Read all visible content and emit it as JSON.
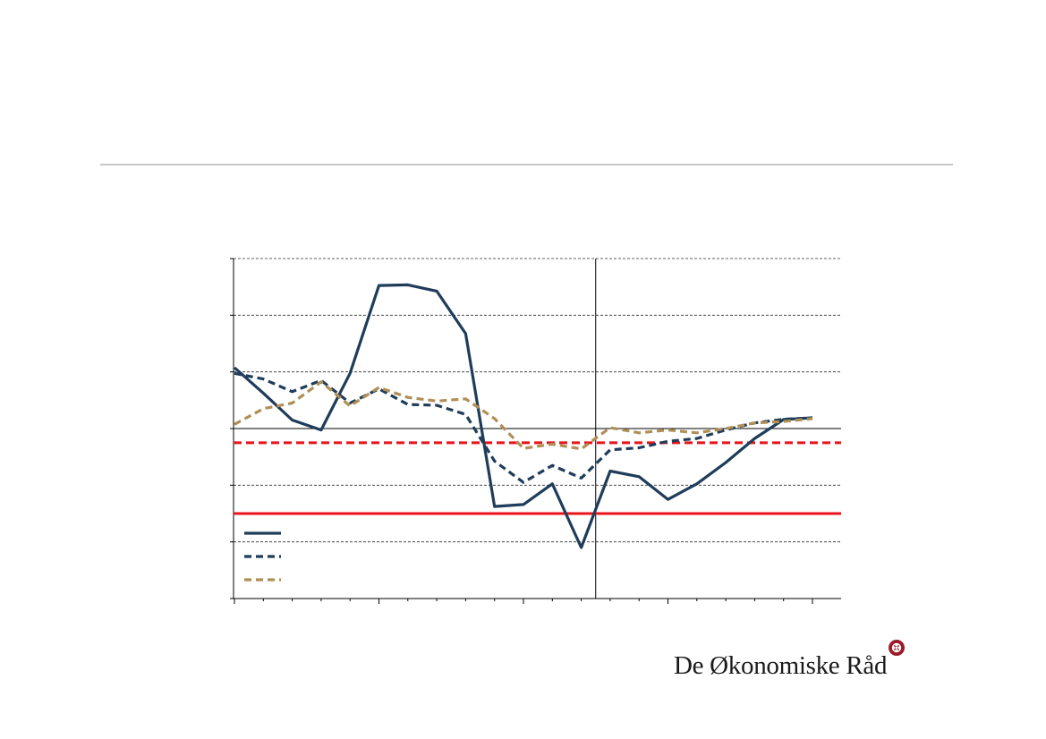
{
  "brand": {
    "name": "De Økonomiske Råd",
    "mark_icon": "rosette-logo-icon",
    "mark_color": "#9b1b2a"
  },
  "colors": {
    "navy": "#1f3d5a",
    "tan": "#b08f55",
    "red": "#e8141c",
    "grid": "#2b2b2b",
    "rule": "#c8c8c8"
  },
  "chart_data": {
    "type": "line",
    "title": "",
    "xlabel": "",
    "ylabel": "",
    "x": [
      0,
      1,
      2,
      3,
      4,
      5,
      6,
      7,
      8,
      9,
      10,
      11,
      12,
      13,
      14,
      15,
      16,
      17,
      18,
      19,
      20
    ],
    "ylim": [
      -6,
      6
    ],
    "yticks": [
      -6,
      -4,
      -2,
      0,
      2,
      4,
      6
    ],
    "forecast_divider_x": 12.5,
    "series": [
      {
        "style": "solid",
        "color": "#1f3d5a",
        "values": [
          2.15,
          1.25,
          0.3,
          -0.05,
          1.95,
          5.05,
          5.07,
          4.85,
          3.35,
          -2.75,
          -2.68,
          -1.95,
          -4.2,
          -1.5,
          -1.7,
          -2.5,
          -1.95,
          -1.2,
          -0.35,
          0.32,
          0.38
        ]
      },
      {
        "style": "dashed",
        "color": "#1f3d5a",
        "values": [
          1.95,
          1.75,
          1.3,
          1.7,
          0.9,
          1.4,
          0.85,
          0.82,
          0.5,
          -1.15,
          -1.9,
          -1.3,
          -1.75,
          -0.75,
          -0.68,
          -0.45,
          -0.35,
          -0.05,
          0.2,
          0.33,
          0.38
        ]
      },
      {
        "style": "dashed",
        "color": "#b08f55",
        "values": [
          0.15,
          0.7,
          0.9,
          1.65,
          0.8,
          1.45,
          1.1,
          0.97,
          1.05,
          0.35,
          -0.7,
          -0.55,
          -0.72,
          0.03,
          -0.15,
          -0.05,
          -0.15,
          0.0,
          0.2,
          0.25,
          0.35
        ]
      }
    ],
    "reference_lines": [
      {
        "y": -0.5,
        "style": "dashed",
        "color": "#e8141c"
      },
      {
        "y": -3.0,
        "style": "solid",
        "color": "#e8141c"
      }
    ],
    "legend": {
      "placement": "bottom-left",
      "entries": [
        {
          "style": "solid",
          "color": "#1f3d5a"
        },
        {
          "style": "dashed",
          "color": "#1f3d5a"
        },
        {
          "style": "dashed",
          "color": "#b08f55"
        }
      ]
    },
    "grid": true
  }
}
